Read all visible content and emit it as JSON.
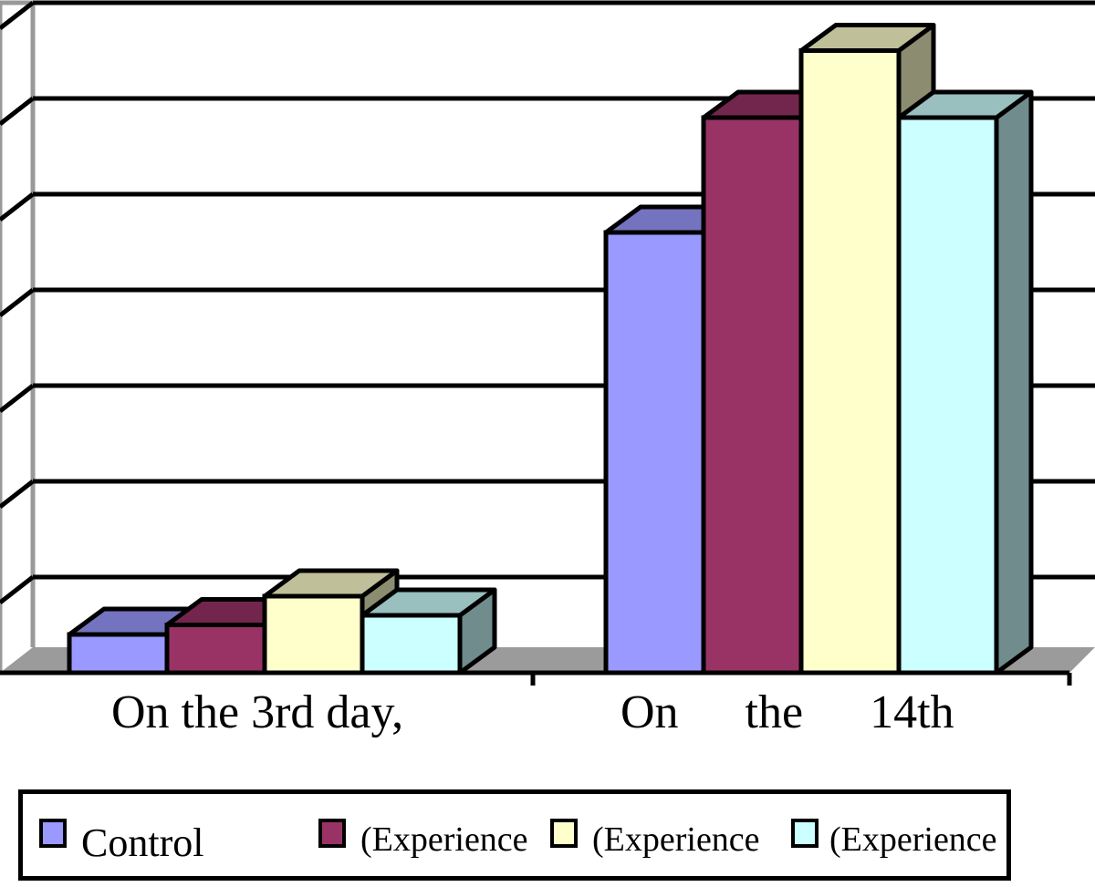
{
  "chart_data": {
    "type": "bar",
    "style": "3d-clustered",
    "categories": [
      "On the 3rd day,",
      "On the 14th"
    ],
    "series": [
      {
        "name": "Control",
        "color": "#9999ff",
        "values": [
          0.4,
          4.6
        ]
      },
      {
        "name": "Experience",
        "color": "#993366",
        "values": [
          0.5,
          5.8
        ]
      },
      {
        "name": "Experience",
        "color": "#ffffcc",
        "values": [
          0.8,
          6.5
        ]
      },
      {
        "name": "Experience",
        "color": "#ccffff",
        "values": [
          0.6,
          5.8
        ]
      }
    ],
    "ylim": [
      0,
      7
    ],
    "grid": true,
    "legend": "bottom",
    "title": "",
    "xlabel": "",
    "ylabel": ""
  },
  "legend": {
    "items": [
      {
        "label": "Control",
        "color": "#9999ff"
      },
      {
        "label": "(Experience",
        "color": "#993366"
      },
      {
        "label": "(Experience",
        "color": "#ffffcc"
      },
      {
        "label": "(Experience",
        "color": "#ccffff"
      }
    ]
  }
}
